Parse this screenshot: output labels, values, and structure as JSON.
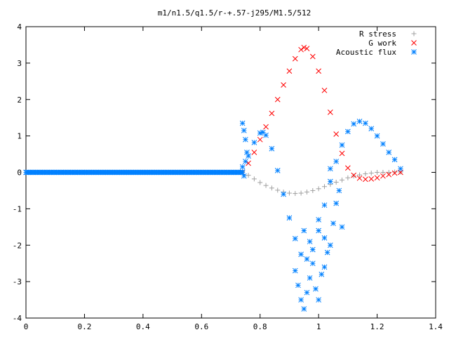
{
  "chart_data": {
    "type": "scatter",
    "title": "m1/n1.5/q1.5/r-+.57-j295/M1.5/512",
    "xlabel": "",
    "ylabel": "",
    "xlim": [
      0,
      1.4
    ],
    "ylim": [
      -4,
      4
    ],
    "xticks": [
      "0",
      "0.2",
      "0.4",
      "0.6",
      "0.8",
      "1",
      "1.2",
      "1.4"
    ],
    "yticks": [
      "4",
      "3",
      "2",
      "1",
      "0",
      "-1",
      "-2",
      "-3",
      "-4"
    ],
    "grid": false,
    "legend_position": "top-right",
    "series": [
      {
        "name": "R stress",
        "marker": "plus",
        "color": "#a0a0a0",
        "points": [
          [
            0.74,
            0.02
          ],
          [
            0.76,
            -0.08
          ],
          [
            0.78,
            -0.18
          ],
          [
            0.8,
            -0.28
          ],
          [
            0.82,
            -0.36
          ],
          [
            0.84,
            -0.43
          ],
          [
            0.86,
            -0.49
          ],
          [
            0.88,
            -0.54
          ],
          [
            0.9,
            -0.57
          ],
          [
            0.92,
            -0.58
          ],
          [
            0.94,
            -0.57
          ],
          [
            0.96,
            -0.54
          ],
          [
            0.98,
            -0.5
          ],
          [
            1.0,
            -0.45
          ],
          [
            1.02,
            -0.39
          ],
          [
            1.04,
            -0.33
          ],
          [
            1.06,
            -0.27
          ],
          [
            1.08,
            -0.21
          ],
          [
            1.1,
            -0.15
          ],
          [
            1.12,
            -0.1
          ],
          [
            1.14,
            -0.07
          ],
          [
            1.16,
            -0.04
          ],
          [
            1.18,
            -0.02
          ],
          [
            1.2,
            0.0
          ],
          [
            1.22,
            0.0
          ],
          [
            1.24,
            0.0
          ],
          [
            1.26,
            0.01
          ],
          [
            1.28,
            0.01
          ]
        ]
      },
      {
        "name": "G work",
        "marker": "cross",
        "color": "#ff0000",
        "points": [
          [
            0.74,
            0.0
          ],
          [
            0.76,
            0.25
          ],
          [
            0.78,
            0.55
          ],
          [
            0.8,
            0.9
          ],
          [
            0.82,
            1.25
          ],
          [
            0.84,
            1.62
          ],
          [
            0.86,
            2.0
          ],
          [
            0.88,
            2.4
          ],
          [
            0.9,
            2.78
          ],
          [
            0.92,
            3.12
          ],
          [
            0.94,
            3.37
          ],
          [
            0.95,
            3.43
          ],
          [
            0.96,
            3.4
          ],
          [
            0.98,
            3.18
          ],
          [
            1.0,
            2.78
          ],
          [
            1.02,
            2.25
          ],
          [
            1.04,
            1.65
          ],
          [
            1.06,
            1.05
          ],
          [
            1.08,
            0.52
          ],
          [
            1.1,
            0.12
          ],
          [
            1.12,
            -0.08
          ],
          [
            1.14,
            -0.16
          ],
          [
            1.16,
            -0.19
          ],
          [
            1.18,
            -0.18
          ],
          [
            1.2,
            -0.15
          ],
          [
            1.22,
            -0.1
          ],
          [
            1.24,
            -0.06
          ],
          [
            1.26,
            -0.02
          ],
          [
            1.28,
            0.0
          ]
        ]
      },
      {
        "name": "Acoustic flux",
        "marker": "star",
        "color": "#0080ff",
        "points": [
          [
            0.74,
            0.15
          ],
          [
            0.76,
            0.45
          ],
          [
            0.78,
            0.82
          ],
          [
            0.8,
            1.08
          ],
          [
            0.81,
            1.1
          ],
          [
            0.82,
            1.02
          ],
          [
            0.84,
            0.65
          ],
          [
            0.86,
            0.05
          ],
          [
            0.88,
            -0.6
          ],
          [
            0.9,
            -1.25
          ],
          [
            0.92,
            -1.82
          ],
          [
            0.94,
            -2.25
          ],
          [
            0.96,
            -2.38
          ],
          [
            0.98,
            -2.12
          ],
          [
            1.0,
            -1.6
          ],
          [
            1.02,
            -0.9
          ],
          [
            1.04,
            -0.25
          ],
          [
            1.06,
            0.3
          ],
          [
            1.08,
            0.75
          ],
          [
            1.1,
            1.12
          ],
          [
            1.12,
            1.33
          ],
          [
            1.14,
            1.4
          ],
          [
            1.16,
            1.35
          ],
          [
            1.18,
            1.2
          ],
          [
            1.2,
            1.0
          ],
          [
            1.22,
            0.78
          ],
          [
            1.24,
            0.55
          ],
          [
            1.26,
            0.35
          ],
          [
            1.28,
            0.1
          ],
          [
            0.74,
            1.35
          ],
          [
            0.745,
            1.15
          ],
          [
            0.75,
            0.9
          ],
          [
            0.755,
            0.55
          ],
          [
            0.745,
            -0.1
          ],
          [
            0.75,
            0.3
          ],
          [
            0.92,
            -2.7
          ],
          [
            0.93,
            -3.1
          ],
          [
            0.94,
            -3.5
          ],
          [
            0.95,
            -3.75
          ],
          [
            0.96,
            -3.3
          ],
          [
            0.97,
            -2.9
          ],
          [
            0.98,
            -2.5
          ],
          [
            0.99,
            -3.2
          ],
          [
            1.0,
            -3.5
          ],
          [
            1.01,
            -2.8
          ],
          [
            1.0,
            -1.3
          ],
          [
            1.02,
            -1.8
          ],
          [
            1.03,
            -2.2
          ],
          [
            1.04,
            -2.0
          ],
          [
            1.05,
            -1.4
          ],
          [
            1.06,
            -0.85
          ],
          [
            1.07,
            -0.5
          ],
          [
            1.08,
            -1.5
          ],
          [
            0.95,
            -1.6
          ],
          [
            0.97,
            -1.9
          ],
          [
            1.02,
            -2.6
          ],
          [
            1.04,
            0.1
          ]
        ]
      },
      {
        "name": "",
        "marker": "star",
        "color": "#0080ff",
        "baseline": true,
        "x_start": 0.0,
        "x_end": 0.74,
        "y": 0.0
      }
    ]
  }
}
